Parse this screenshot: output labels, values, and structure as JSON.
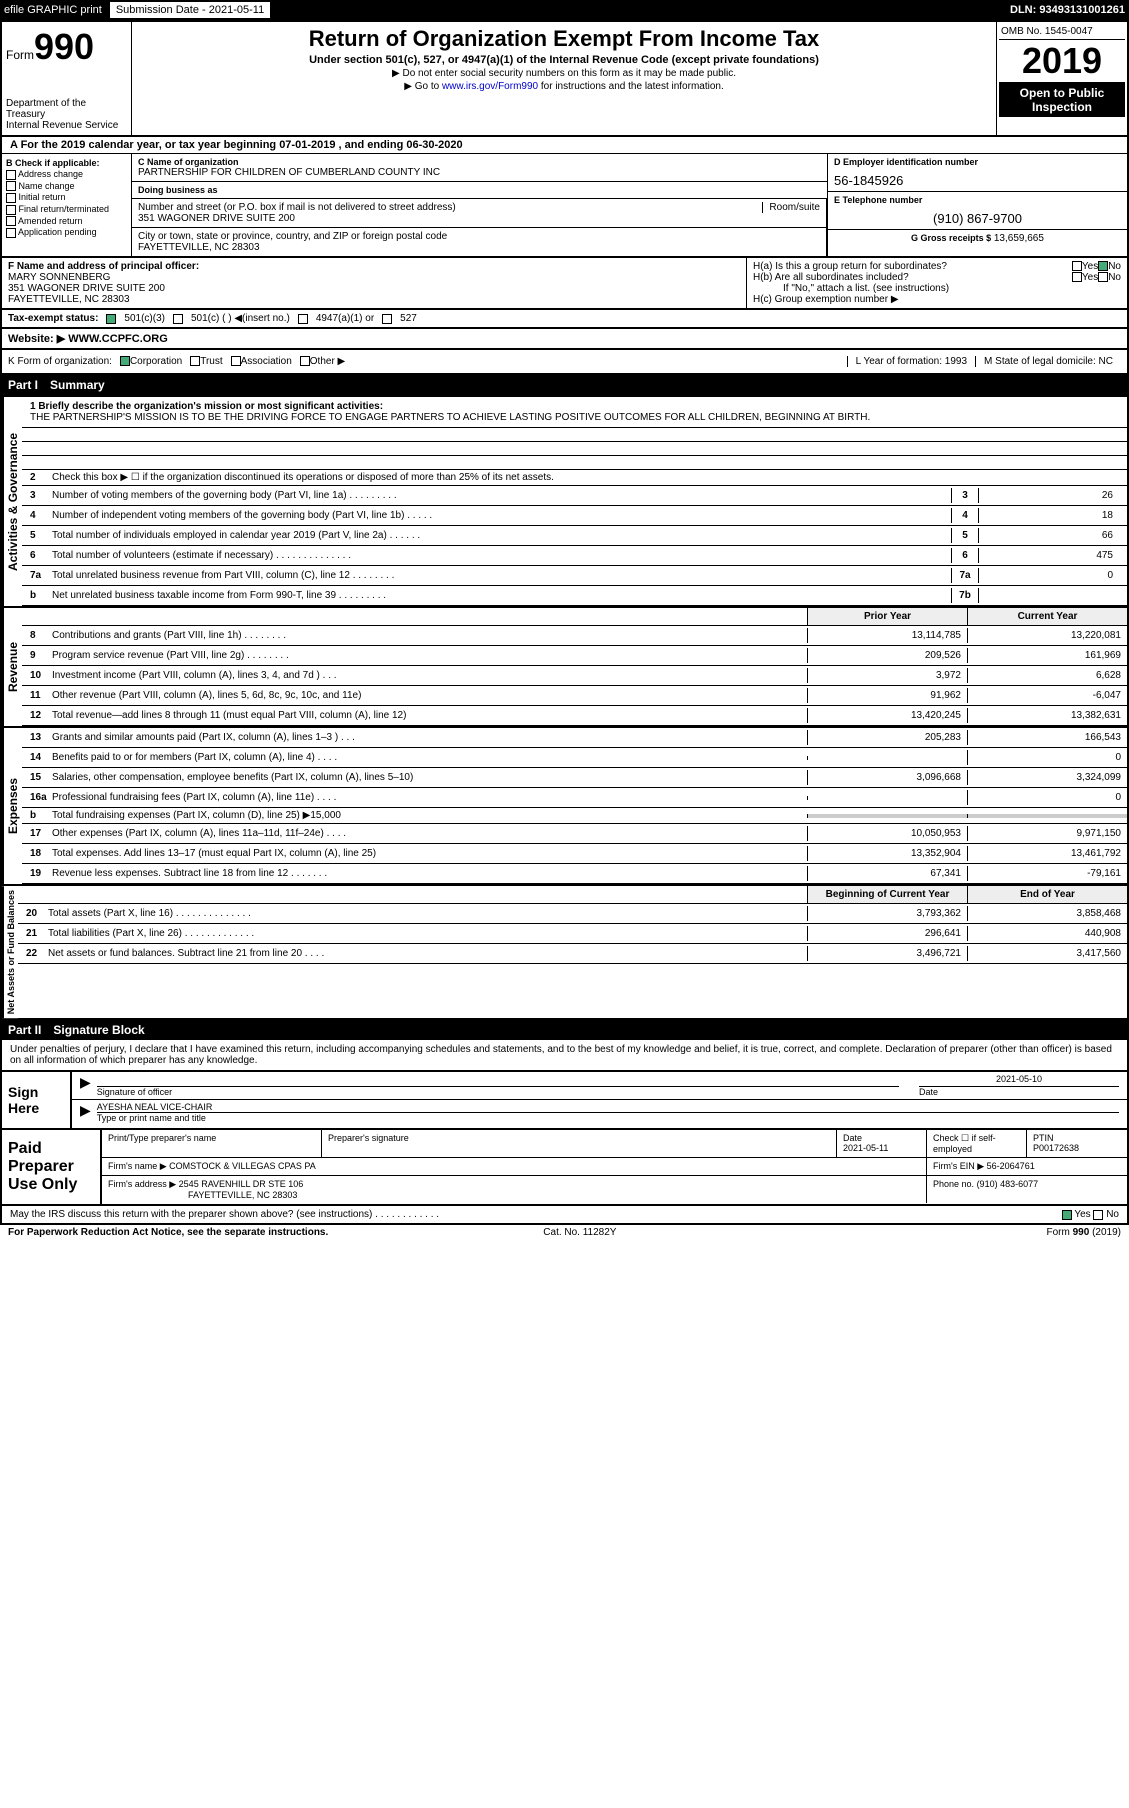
{
  "topbar": {
    "efile": "efile GRAPHIC print",
    "sub_label": "Submission Date - 2021-05-11",
    "dln": "DLN: 93493131001261"
  },
  "header": {
    "form_label": "Form",
    "form_num": "990",
    "dept": "Department of the Treasury\nInternal Revenue Service",
    "title": "Return of Organization Exempt From Income Tax",
    "subtitle": "Under section 501(c), 527, or 4947(a)(1) of the Internal Revenue Code (except private foundations)",
    "line1": "▶ Do not enter social security numbers on this form as it may be made public.",
    "line2_pre": "▶ Go to ",
    "line2_link": "www.irs.gov/Form990",
    "line2_post": " for instructions and the latest information.",
    "omb": "OMB No. 1545-0047",
    "year": "2019",
    "open": "Open to Public Inspection"
  },
  "period": "A For the 2019 calendar year, or tax year beginning 07-01-2019    , and ending 06-30-2020",
  "boxB": {
    "title": "B Check if applicable:",
    "opts": [
      "Address change",
      "Name change",
      "Initial return",
      "Final return/terminated",
      "Amended return",
      "Application pending"
    ]
  },
  "boxC": {
    "name_lbl": "C Name of organization",
    "name": "PARTNERSHIP FOR CHILDREN OF CUMBERLAND COUNTY INC",
    "dba_lbl": "Doing business as",
    "dba": "",
    "addr_lbl": "Number and street (or P.O. box if mail is not delivered to street address)",
    "room_lbl": "Room/suite",
    "addr": "351 WAGONER DRIVE SUITE 200",
    "city_lbl": "City or town, state or province, country, and ZIP or foreign postal code",
    "city": "FAYETTEVILLE, NC  28303"
  },
  "boxD": {
    "lbl": "D Employer identification number",
    "val": "56-1845926"
  },
  "boxE": {
    "lbl": "E Telephone number",
    "val": "(910) 867-9700"
  },
  "boxG": {
    "lbl": "G Gross receipts $",
    "val": "13,659,665"
  },
  "boxF": {
    "lbl": "F  Name and address of principal officer:",
    "name": "MARY SONNENBERG",
    "addr1": "351 WAGONER DRIVE SUITE 200",
    "addr2": "FAYETTEVILLE, NC  28303"
  },
  "boxH": {
    "a": "H(a)  Is this a group return for subordinates?",
    "b": "H(b)  Are all subordinates included?",
    "note": "If \"No,\" attach a list. (see instructions)",
    "c": "H(c)  Group exemption number ▶",
    "yes": "Yes",
    "no": "No"
  },
  "taxstatus": {
    "lbl": "Tax-exempt status:",
    "o1": "501(c)(3)",
    "o2": "501(c) (  ) ◀(insert no.)",
    "o3": "4947(a)(1) or",
    "o4": "527"
  },
  "boxJ": {
    "lbl": "J",
    "text": "Website: ▶  WWW.CCPFC.ORG"
  },
  "boxK": {
    "text": "K Form of organization:",
    "o1": "Corporation",
    "o2": "Trust",
    "o3": "Association",
    "o4": "Other ▶",
    "L": "L Year of formation: 1993",
    "M": "M State of legal domicile: NC"
  },
  "part1": {
    "num": "Part I",
    "title": "Summary"
  },
  "mission": {
    "lbl": "1  Briefly describe the organization's mission or most significant activities:",
    "text": "THE PARTNERSHIP'S MISSION IS TO BE THE DRIVING FORCE TO ENGAGE PARTNERS TO ACHIEVE LASTING POSITIVE OUTCOMES FOR ALL CHILDREN, BEGINNING AT BIRTH."
  },
  "gov_label": "Activities & Governance",
  "gov_rows": [
    {
      "n": "2",
      "d": "Check this box ▶ ☐ if the organization discontinued its operations or disposed of more than 25% of its net assets.",
      "box": "",
      "v": ""
    },
    {
      "n": "3",
      "d": "Number of voting members of the governing body (Part VI, line 1a)  .   .   .   .   .   .   .   .   .",
      "box": "3",
      "v": "26"
    },
    {
      "n": "4",
      "d": "Number of independent voting members of the governing body (Part VI, line 1b)  .   .   .   .   .",
      "box": "4",
      "v": "18"
    },
    {
      "n": "5",
      "d": "Total number of individuals employed in calendar year 2019 (Part V, line 2a)  .   .   .   .   .   .",
      "box": "5",
      "v": "66"
    },
    {
      "n": "6",
      "d": "Total number of volunteers (estimate if necessary)   .   .   .   .   .   .   .   .   .   .   .   .   .   .",
      "box": "6",
      "v": "475"
    },
    {
      "n": "7a",
      "d": "Total unrelated business revenue from Part VIII, column (C), line 12  .   .   .   .   .   .   .   .",
      "box": "7a",
      "v": "0"
    },
    {
      "n": "b",
      "d": "Net unrelated business taxable income from Form 990-T, line 39   .   .   .   .   .   .   .   .   .",
      "box": "7b",
      "v": ""
    }
  ],
  "rev_label": "Revenue",
  "rev_hdr": {
    "c1": "Prior Year",
    "c2": "Current Year"
  },
  "rev_rows": [
    {
      "n": "8",
      "d": "Contributions and grants (Part VIII, line 1h)   .   .   .   .   .   .   .   .",
      "c1": "13,114,785",
      "c2": "13,220,081"
    },
    {
      "n": "9",
      "d": "Program service revenue (Part VIII, line 2g)   .   .   .   .   .   .   .   .",
      "c1": "209,526",
      "c2": "161,969"
    },
    {
      "n": "10",
      "d": "Investment income (Part VIII, column (A), lines 3, 4, and 7d )   .   .   .",
      "c1": "3,972",
      "c2": "6,628"
    },
    {
      "n": "11",
      "d": "Other revenue (Part VIII, column (A), lines 5, 6d, 8c, 9c, 10c, and 11e)",
      "c1": "91,962",
      "c2": "-6,047"
    },
    {
      "n": "12",
      "d": "Total revenue—add lines 8 through 11 (must equal Part VIII, column (A), line 12)",
      "c1": "13,420,245",
      "c2": "13,382,631"
    }
  ],
  "exp_label": "Expenses",
  "exp_rows": [
    {
      "n": "13",
      "d": "Grants and similar amounts paid (Part IX, column (A), lines 1–3 )   .   .   .",
      "c1": "205,283",
      "c2": "166,543"
    },
    {
      "n": "14",
      "d": "Benefits paid to or for members (Part IX, column (A), line 4)   .   .   .   .",
      "c1": "",
      "c2": "0"
    },
    {
      "n": "15",
      "d": "Salaries, other compensation, employee benefits (Part IX, column (A), lines 5–10)",
      "c1": "3,096,668",
      "c2": "3,324,099"
    },
    {
      "n": "16a",
      "d": "Professional fundraising fees (Part IX, column (A), line 11e)   .   .   .   .",
      "c1": "",
      "c2": "0"
    },
    {
      "n": "b",
      "d": "Total fundraising expenses (Part IX, column (D), line 25) ▶15,000",
      "c1": "shaded",
      "c2": "shaded"
    },
    {
      "n": "17",
      "d": "Other expenses (Part IX, column (A), lines 11a–11d, 11f–24e)   .   .   .   .",
      "c1": "10,050,953",
      "c2": "9,971,150"
    },
    {
      "n": "18",
      "d": "Total expenses. Add lines 13–17 (must equal Part IX, column (A), line 25)",
      "c1": "13,352,904",
      "c2": "13,461,792"
    },
    {
      "n": "19",
      "d": "Revenue less expenses. Subtract line 18 from line 12  .   .   .   .   .   .   .",
      "c1": "67,341",
      "c2": "-79,161"
    }
  ],
  "net_label": "Net Assets or Fund Balances",
  "net_hdr": {
    "c1": "Beginning of Current Year",
    "c2": "End of Year"
  },
  "net_rows": [
    {
      "n": "20",
      "d": "Total assets (Part X, line 16)  .   .   .   .   .   .   .   .   .   .   .   .   .   .",
      "c1": "3,793,362",
      "c2": "3,858,468"
    },
    {
      "n": "21",
      "d": "Total liabilities (Part X, line 26)  .   .   .   .   .   .   .   .   .   .   .   .   .",
      "c1": "296,641",
      "c2": "440,908"
    },
    {
      "n": "22",
      "d": "Net assets or fund balances. Subtract line 21 from line 20   .   .   .   .",
      "c1": "3,496,721",
      "c2": "3,417,560"
    }
  ],
  "part2": {
    "num": "Part II",
    "title": "Signature Block"
  },
  "sig_intro": "Under penalties of perjury, I declare that I have examined this return, including accompanying schedules and statements, and to the best of my knowledge and belief, it is true, correct, and complete. Declaration of preparer (other than officer) is based on all information of which preparer has any knowledge.",
  "sign": {
    "here": "Sign Here",
    "sig_lbl": "Signature of officer",
    "date_lbl": "Date",
    "date_val": "2021-05-10",
    "name": "AYESHA NEAL  VICE-CHAIR",
    "name_lbl": "Type or print name and title"
  },
  "prep": {
    "title": "Paid Preparer Use Only",
    "h1": "Print/Type preparer's name",
    "h2": "Preparer's signature",
    "h3": "Date",
    "h3v": "2021-05-11",
    "h4": "Check ☐ if self-employed",
    "h5": "PTIN",
    "h5v": "P00172638",
    "firm_lbl": "Firm's name    ▶",
    "firm": "COMSTOCK & VILLEGAS CPAS PA",
    "ein_lbl": "Firm's EIN ▶",
    "ein": "56-2064761",
    "addr_lbl": "Firm's address ▶",
    "addr1": "2545 RAVENHILL DR STE 106",
    "addr2": "FAYETTEVILLE, NC  28303",
    "phone_lbl": "Phone no.",
    "phone": "(910) 483-6077"
  },
  "discuss": "May the IRS discuss this return with the preparer shown above? (see instructions)   .   .   .   .   .   .   .   .   .   .   .   .",
  "discuss_yes": "Yes",
  "discuss_no": "No",
  "footer": {
    "l": "For Paperwork Reduction Act Notice, see the separate instructions.",
    "m": "Cat. No. 11282Y",
    "r": "Form 990 (2019)"
  }
}
